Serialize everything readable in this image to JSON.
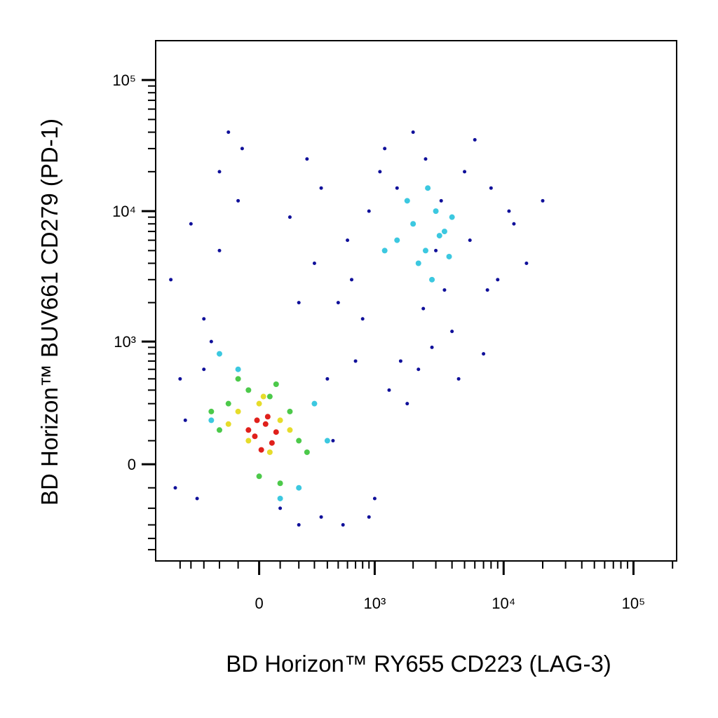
{
  "chart_data": {
    "type": "scatter",
    "xlabel": "BD Horizon™ RY655 CD223 (LAG-3)",
    "ylabel": "BD Horizon™ BUV661 CD279 (PD-1)",
    "scale": "biexponential",
    "xlim": [
      -800,
      215000
    ],
    "ylim": [
      -620,
      199500
    ],
    "xticks": [
      0,
      {
        "value": 1000,
        "label": "10³"
      },
      {
        "value": 10000,
        "label": "10⁴"
      },
      {
        "value": 100000,
        "label": "10⁵"
      }
    ],
    "yticks": [
      0,
      {
        "value": 1000,
        "label": "10³"
      },
      {
        "value": 10000,
        "label": "10⁴"
      },
      {
        "value": 100000,
        "label": "10⁵"
      }
    ],
    "xminorticks": [
      -500,
      -400,
      -300,
      -200,
      -100,
      100,
      200,
      300,
      400,
      500,
      600,
      700,
      800,
      900,
      2000,
      3000,
      4000,
      5000,
      6000,
      7000,
      8000,
      9000,
      20000,
      30000,
      40000,
      50000,
      60000,
      70000,
      80000,
      90000,
      200000
    ],
    "yminorticks": [
      -500,
      -400,
      -300,
      -200,
      -100,
      100,
      200,
      300,
      400,
      500,
      600,
      700,
      800,
      900,
      2000,
      3000,
      4000,
      5000,
      6000,
      7000,
      8000,
      9000,
      20000,
      30000,
      40000,
      50000,
      60000,
      70000,
      80000,
      90000
    ],
    "series": [
      {
        "color": "#10109a",
        "x": [
          -600,
          -400,
          -300,
          -200,
          -500,
          -100,
          100,
          200,
          300,
          500,
          700,
          900,
          1200,
          1500,
          2000,
          2500,
          3000,
          4000,
          5000,
          7000,
          9000,
          12000,
          -350,
          -250,
          400,
          600,
          800,
          1100,
          1800,
          2200,
          3500,
          6000,
          8000,
          15000,
          -450,
          150,
          350,
          650,
          1300,
          2800,
          4500,
          -150,
          250,
          450,
          -550,
          -300,
          200,
          550,
          1000,
          1600,
          2400,
          3300,
          5500,
          7500,
          11000,
          20000,
          -200,
          -80,
          350,
          900
        ],
        "y": [
          3000,
          8000,
          1500,
          20000,
          500,
          12000,
          -200,
          -300,
          4000,
          2000,
          700,
          10000,
          30000,
          15000,
          40000,
          25000,
          5000,
          1200,
          20000,
          800,
          3000,
          8000,
          -150,
          1000,
          500,
          6000,
          1500,
          20000,
          300,
          600,
          2500,
          35000,
          15000,
          4000,
          200,
          9000,
          -250,
          3000,
          400,
          900,
          500,
          40000,
          25000,
          100,
          -100,
          600,
          2000,
          -300,
          -150,
          700,
          1800,
          12000,
          6000,
          2500,
          10000,
          12000,
          5000,
          30000,
          15000,
          -250
        ]
      },
      {
        "color": "#3cc8e0",
        "x": [
          1500,
          2000,
          2500,
          3000,
          3500,
          4000,
          2200,
          2800,
          1800,
          3200,
          -100,
          200,
          -250,
          300,
          100,
          -200,
          400,
          1200,
          2600,
          3800
        ],
        "y": [
          6000,
          8000,
          5000,
          10000,
          7000,
          9000,
          4000,
          3000,
          12000,
          6500,
          600,
          -100,
          200,
          300,
          -150,
          800,
          100,
          5000,
          15000,
          4500
        ]
      },
      {
        "color": "#4cc94a",
        "x": [
          -150,
          -50,
          50,
          150,
          -200,
          0,
          100,
          200,
          -100,
          250,
          -250,
          80
        ],
        "y": [
          300,
          400,
          350,
          250,
          150,
          -50,
          -80,
          100,
          500,
          50,
          250,
          450
        ]
      },
      {
        "color": "#e6dc2a",
        "x": [
          -100,
          0,
          100,
          -50,
          50,
          150,
          -150,
          20
        ],
        "y": [
          250,
          300,
          200,
          100,
          50,
          150,
          180,
          350
        ]
      },
      {
        "color": "#e0201b",
        "x": [
          -20,
          30,
          60,
          -50,
          10,
          80,
          40,
          -10
        ],
        "y": [
          120,
          180,
          90,
          150,
          60,
          140,
          220,
          200
        ]
      }
    ]
  }
}
